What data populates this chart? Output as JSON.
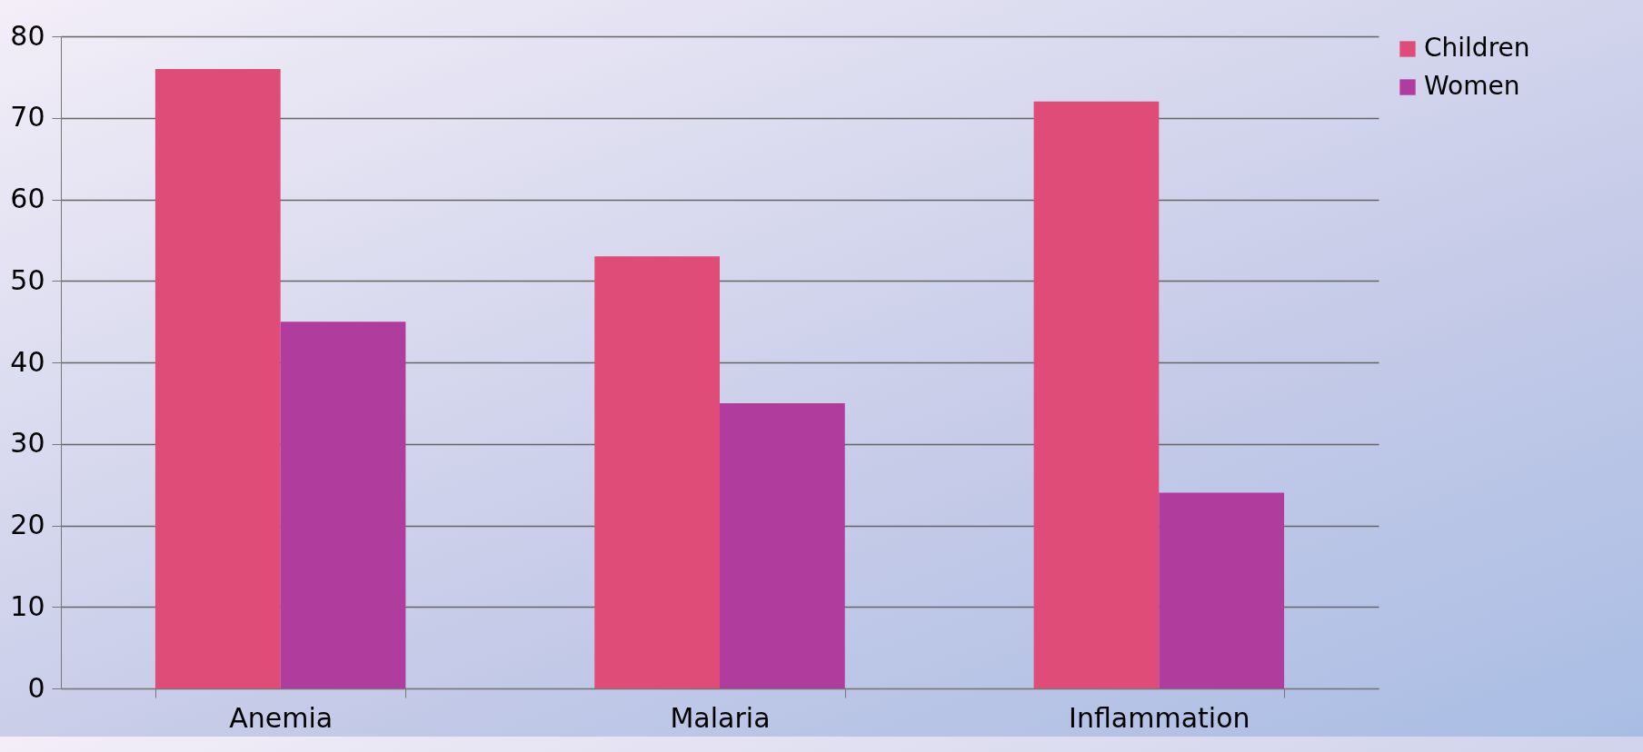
{
  "chart_data": {
    "type": "bar",
    "categories": [
      "Anemia",
      "Malaria",
      "Inflammation"
    ],
    "series": [
      {
        "name": "Children",
        "color": "#e04c78",
        "values": [
          76,
          53,
          72
        ]
      },
      {
        "name": "Women",
        "color": "#b03c9e",
        "values": [
          45,
          35,
          24
        ]
      }
    ],
    "ylim": [
      0,
      80
    ],
    "yticks": [
      0,
      10,
      20,
      30,
      40,
      50,
      60,
      70,
      80
    ],
    "grid": "y",
    "legend": "right"
  }
}
